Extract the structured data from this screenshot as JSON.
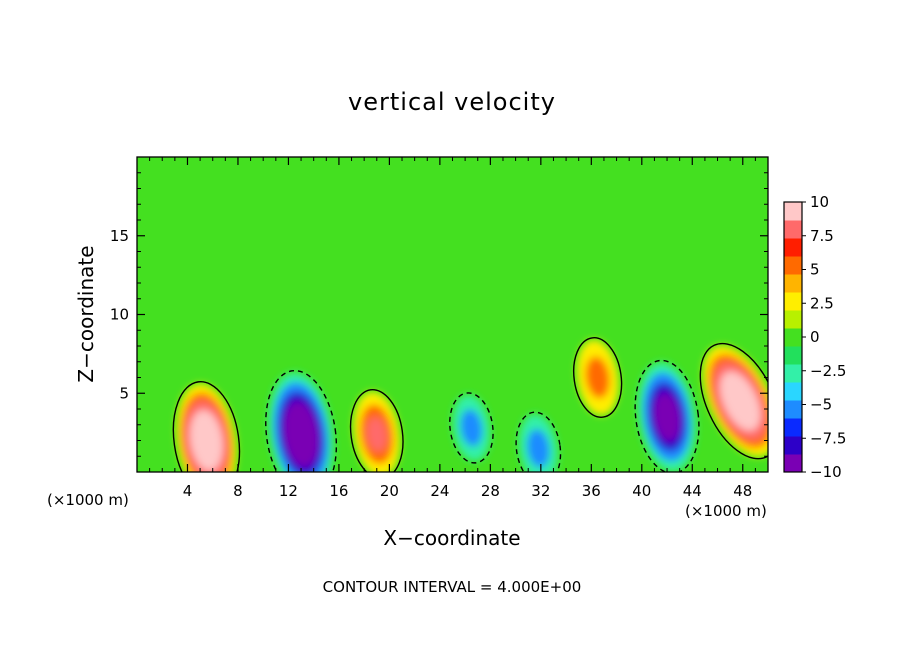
{
  "chart_data": {
    "type": "heatmap",
    "title": "vertical velocity",
    "xlabel": "X−coordinate",
    "ylabel": "Z−coordinate",
    "x_unit_left": "(×1000 m)",
    "x_unit_right": "(×1000 m)",
    "annotation": "CONTOUR INTERVAL = 4.000E+00",
    "xlim": [
      0,
      50
    ],
    "ylim": [
      0,
      20
    ],
    "x_ticks": [
      4,
      8,
      12,
      16,
      20,
      24,
      28,
      32,
      36,
      40,
      44,
      48
    ],
    "y_ticks": [
      5,
      10,
      15
    ],
    "colorbar": {
      "range": [
        -10,
        10
      ],
      "tick_values": [
        10,
        7.5,
        5,
        2.5,
        0,
        -2.5,
        -5,
        -7.5,
        -10
      ],
      "tick_labels": [
        "10",
        "7.5",
        "5",
        "2.5",
        "0",
        "−2.5",
        "−5",
        "−7.5",
        "−10"
      ],
      "colormap": [
        "#7a00b4",
        "#2d00c8",
        "#0a2aff",
        "#1e8cff",
        "#2ad6ff",
        "#33f0a8",
        "#22e05c",
        "#44e020",
        "#b8f000",
        "#ffee00",
        "#ffb400",
        "#ff6a00",
        "#ff1e00",
        "#ff6a6a",
        "#ffc8c8"
      ]
    },
    "features": [
      {
        "x": 5.5,
        "z": 2.0,
        "w": 13
      },
      {
        "x": 13.0,
        "z": 2.4,
        "w": -15
      },
      {
        "x": 19.0,
        "z": 2.4,
        "w": 7
      },
      {
        "x": 36.5,
        "z": 6.0,
        "w": 5
      },
      {
        "x": 42.0,
        "z": 3.5,
        "w": -12
      },
      {
        "x": 47.8,
        "z": 4.5,
        "w": 14
      },
      {
        "x": 26.5,
        "z": 2.8,
        "w": -3
      },
      {
        "x": 31.8,
        "z": 1.5,
        "w": -3.5
      }
    ]
  }
}
